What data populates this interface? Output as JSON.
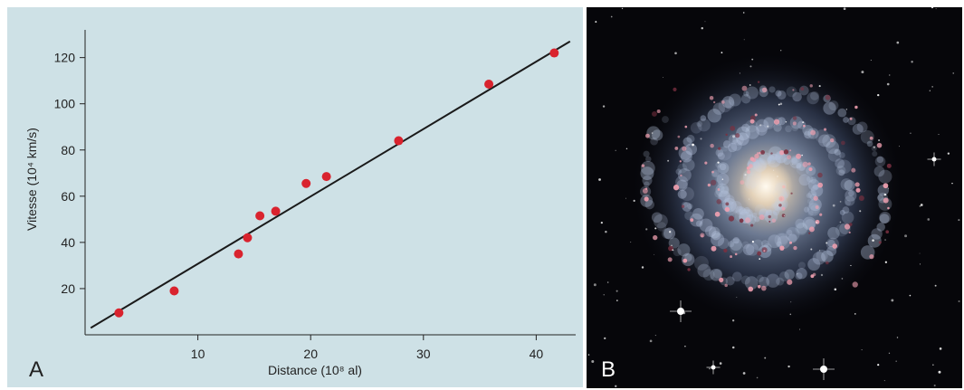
{
  "panel_a": {
    "letter": "A"
  },
  "panel_b": {
    "letter": "B"
  },
  "chart_data": {
    "type": "scatter",
    "title": "",
    "xlabel": "Distance (10⁸ al)",
    "ylabel": "Vitesse (10⁴ km/s)",
    "xlim": [
      0,
      43.5
    ],
    "ylim": [
      0,
      132
    ],
    "x_ticks": [
      10,
      20,
      30,
      40
    ],
    "y_ticks": [
      20,
      40,
      60,
      80,
      100,
      120
    ],
    "points": [
      {
        "x": 3.0,
        "y": 9.5
      },
      {
        "x": 7.9,
        "y": 19.0
      },
      {
        "x": 13.6,
        "y": 35.0
      },
      {
        "x": 14.4,
        "y": 42.0
      },
      {
        "x": 15.5,
        "y": 51.5
      },
      {
        "x": 16.9,
        "y": 53.5
      },
      {
        "x": 19.6,
        "y": 65.5
      },
      {
        "x": 21.4,
        "y": 68.5
      },
      {
        "x": 27.8,
        "y": 84.0
      },
      {
        "x": 35.8,
        "y": 108.5
      },
      {
        "x": 41.6,
        "y": 122.0
      }
    ],
    "fit_line": {
      "x": [
        0.5,
        43.0
      ],
      "y": [
        3.0,
        127.0
      ]
    },
    "marker_color": "#d9232e",
    "line_color": "#1a1a1a",
    "background_color": "#cee1e6",
    "grid": false
  }
}
